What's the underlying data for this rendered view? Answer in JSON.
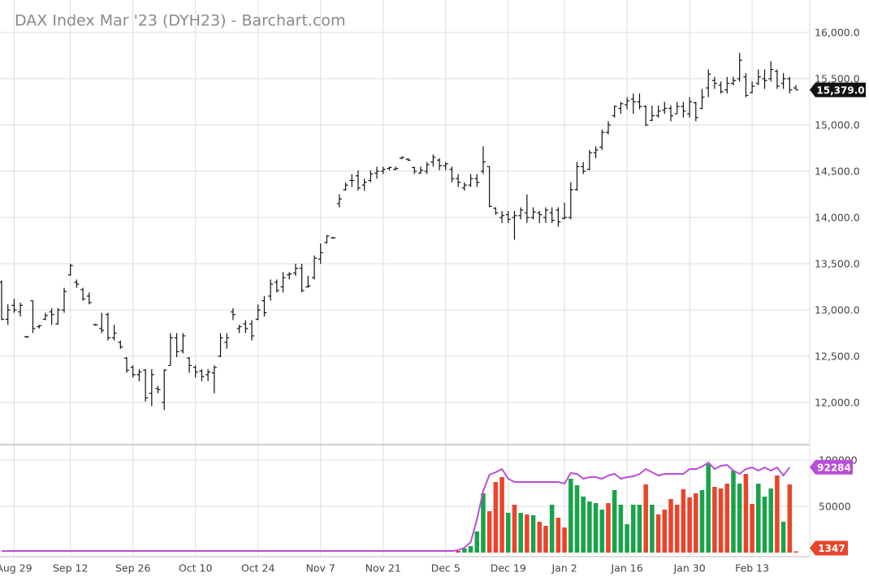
{
  "chart_data": {
    "type": "ohlc",
    "title": "DAX Index Mar '23 (DYH23) - Barchart.com",
    "categories": [
      null,
      null,
      "Aug 29",
      null,
      null,
      null,
      null,
      null,
      null,
      null,
      null,
      "Sep 12",
      null,
      null,
      null,
      null,
      null,
      null,
      null,
      null,
      null,
      "Sep 26",
      null,
      null,
      null,
      null,
      null,
      null,
      null,
      null,
      null,
      "Oct 10",
      null,
      null,
      null,
      null,
      null,
      null,
      null,
      null,
      null,
      "Oct 24",
      null,
      null,
      null,
      null,
      null,
      null,
      null,
      null,
      null,
      "Nov 7",
      null,
      null,
      null,
      null,
      null,
      null,
      null,
      null,
      null,
      "Nov 21",
      null,
      null,
      null,
      null,
      null,
      null,
      null,
      null,
      null,
      "Dec 5",
      null,
      null,
      null,
      null,
      null,
      null,
      null,
      null,
      null,
      "Dec 19",
      null,
      null,
      null,
      null,
      null,
      null,
      null,
      null,
      "Jan 2",
      null,
      null,
      null,
      null,
      null,
      null,
      null,
      null,
      null,
      "Jan 16",
      null,
      null,
      null,
      null,
      null,
      null,
      null,
      null,
      null,
      "Jan 30",
      null,
      null,
      null,
      null,
      null,
      null,
      null,
      null,
      null,
      "Feb 13",
      null,
      null,
      null,
      null,
      null,
      null,
      null
    ],
    "open": [
      13300,
      12900,
      13050,
      12980,
      12710,
      13100,
      12820,
      12900,
      12980,
      12850,
      13000,
      13380,
      13300,
      13220,
      13150,
      12840,
      12800,
      12950,
      12700,
      12650,
      12480,
      12380,
      12300,
      12350,
      12100,
      12150,
      12000,
      12400,
      12700,
      12560,
      12480,
      12380,
      12340,
      12300,
      12320,
      12500,
      12650,
      12980,
      12800,
      12850,
      12850,
      12900,
      13100,
      13150,
      13300,
      13250,
      13380,
      13400,
      13450,
      13250,
      13350,
      13550,
      13730,
      13780,
      14150,
      14300,
      14400,
      14450,
      14350,
      14400,
      14480,
      14500,
      14530,
      14520,
      14640,
      14630,
      14540,
      14480,
      14500,
      14600,
      14620,
      14560,
      14520,
      14420,
      14320,
      14350,
      14420,
      14500,
      14550,
      14100,
      14000,
      14030,
      14000,
      14020,
      14050,
      14000,
      14050,
      14000,
      14050,
      14080,
      13990,
      14000,
      14300,
      14550,
      14520,
      14700,
      14760,
      14920,
      15100,
      15180,
      15220,
      15280,
      15250,
      15200,
      15050,
      15100,
      15160,
      15180,
      15120,
      15200,
      15120,
      15240,
      15180,
      15400,
      15480,
      15430,
      15380,
      15450,
      15500,
      15520,
      15350,
      15450,
      15500,
      15500,
      15580,
      15450,
      15500,
      15400
    ],
    "high": [
      13320,
      13060,
      13120,
      13080,
      12720,
      13100,
      12840,
      12970,
      13020,
      13020,
      13240,
      13500,
      13330,
      13240,
      13190,
      12850,
      12970,
      12970,
      12840,
      12670,
      12490,
      12400,
      12360,
      12360,
      12360,
      12180,
      12360,
      12750,
      12750,
      12750,
      12490,
      12400,
      12360,
      12360,
      12400,
      12750,
      12750,
      13020,
      12840,
      12890,
      12890,
      13060,
      13150,
      13330,
      13330,
      13410,
      13410,
      13500,
      13500,
      13370,
      13590,
      13720,
      13810,
      13790,
      14250,
      14380,
      14470,
      14510,
      14420,
      14510,
      14550,
      14550,
      14550,
      14550,
      14660,
      14640,
      14550,
      14550,
      14600,
      14680,
      14640,
      14600,
      14550,
      14470,
      14380,
      14470,
      14470,
      14770,
      14550,
      14110,
      14070,
      14070,
      14070,
      14110,
      14250,
      14110,
      14070,
      14110,
      14110,
      14110,
      14160,
      14380,
      14600,
      14600,
      14730,
      14770,
      14950,
      15040,
      15210,
      15250,
      15300,
      15340,
      15340,
      15210,
      15210,
      15210,
      15250,
      15210,
      15250,
      15250,
      15300,
      15250,
      15390,
      15600,
      15520,
      15470,
      15520,
      15520,
      15780,
      15560,
      15470,
      15600,
      15600,
      15690,
      15600,
      15560,
      15520,
      15430
    ],
    "low": [
      12890,
      12840,
      12970,
      12930,
      12700,
      12750,
      12800,
      12890,
      12840,
      12840,
      12970,
      13370,
      13240,
      13100,
      13060,
      12830,
      12750,
      12670,
      12670,
      12580,
      12320,
      12270,
      12230,
      12010,
      11960,
      12100,
      11920,
      12400,
      12490,
      12530,
      12320,
      12270,
      12230,
      12230,
      12100,
      12490,
      12580,
      12890,
      12750,
      12750,
      12670,
      12890,
      12930,
      13100,
      13190,
      13190,
      13330,
      13370,
      13190,
      13240,
      13330,
      13500,
      13720,
      13770,
      14110,
      14290,
      14330,
      14290,
      14290,
      14380,
      14420,
      14470,
      14510,
      14510,
      14630,
      14610,
      14470,
      14470,
      14470,
      14550,
      14510,
      14510,
      14380,
      14330,
      14290,
      14330,
      14330,
      14470,
      14110,
      14030,
      13940,
      13940,
      13760,
      13980,
      13940,
      13980,
      13940,
      13940,
      13940,
      13900,
      13980,
      13980,
      14290,
      14470,
      14510,
      14640,
      14730,
      14900,
      15080,
      15120,
      15170,
      15120,
      15170,
      14990,
      15040,
      15080,
      15120,
      15040,
      15120,
      15080,
      15080,
      15040,
      15170,
      15300,
      15390,
      15340,
      15340,
      15430,
      15470,
      15300,
      15340,
      15430,
      15390,
      15470,
      15390,
      15390,
      15340,
      15380
    ],
    "close": [
      12900,
      13000,
      13000,
      13050,
      12710,
      12800,
      12830,
      12940,
      12950,
      13000,
      13200,
      13480,
      13280,
      13120,
      13080,
      12840,
      12780,
      12700,
      12750,
      12600,
      12350,
      12300,
      12330,
      12050,
      12300,
      12140,
      12350,
      12700,
      12550,
      12720,
      12400,
      12330,
      12280,
      12330,
      12380,
      12700,
      12700,
      12950,
      12820,
      12800,
      12720,
      13000,
      12970,
      13280,
      13210,
      13350,
      13390,
      13450,
      13210,
      13260,
      13560,
      13620,
      13800,
      13780,
      14200,
      14350,
      14400,
      14320,
      14380,
      14470,
      14500,
      14520,
      14540,
      14530,
      14650,
      14620,
      14500,
      14510,
      14570,
      14650,
      14560,
      14580,
      14420,
      14380,
      14350,
      14420,
      14380,
      14600,
      14120,
      14050,
      14020,
      13980,
      14020,
      14080,
      14000,
      14060,
      14030,
      14080,
      13970,
      13950,
      14000,
      14300,
      14550,
      14500,
      14700,
      14730,
      14920,
      15000,
      15200,
      15230,
      15260,
      15250,
      15200,
      15000,
      15100,
      15150,
      15180,
      15100,
      15200,
      15150,
      15250,
      15080,
      15300,
      15550,
      15450,
      15360,
      15450,
      15480,
      15700,
      15320,
      15420,
      15520,
      15480,
      15600,
      15420,
      15500,
      15380,
      15379
    ],
    "last_close_label": "15,379.0",
    "color": "#111111",
    "ylim": [
      11544,
      16351
    ],
    "yticks": [
      {
        "value": 12000,
        "label": "12,000.0"
      },
      {
        "value": 12500,
        "label": "12,500.0"
      },
      {
        "value": 13000,
        "label": "13,000.0"
      },
      {
        "value": 13500,
        "label": "13,500.0"
      },
      {
        "value": 14000,
        "label": "14,000.0"
      },
      {
        "value": 14500,
        "label": "14,500.0"
      },
      {
        "value": 15000,
        "label": "15,000.0"
      },
      {
        "value": 15500,
        "label": "15,500.0"
      },
      {
        "value": 16000,
        "label": "16,000.0"
      }
    ],
    "grid": true,
    "volume": {
      "values": [
        0,
        0,
        0,
        0,
        0,
        0,
        0,
        0,
        0,
        0,
        0,
        0,
        0,
        0,
        0,
        0,
        0,
        0,
        0,
        0,
        0,
        0,
        0,
        0,
        0,
        0,
        0,
        0,
        0,
        0,
        0,
        0,
        0,
        0,
        0,
        0,
        0,
        0,
        0,
        0,
        0,
        0,
        0,
        0,
        0,
        0,
        0,
        0,
        0,
        0,
        0,
        0,
        0,
        0,
        0,
        0,
        0,
        0,
        0,
        0,
        0,
        0,
        0,
        0,
        0,
        0,
        0,
        0,
        0,
        0,
        0,
        0,
        0,
        1750,
        4390,
        7020,
        22810,
        64040,
        44740,
        76320,
        81580,
        42980,
        51750,
        42980,
        41230,
        40350,
        33330,
        28950,
        51750,
        37720,
        27190,
        79830,
        72810,
        60530,
        55260,
        53510,
        46490,
        53510,
        67540,
        51750,
        30700,
        51750,
        51750,
        73680,
        51750,
        41230,
        46490,
        57900,
        51750,
        68420,
        59650,
        64040,
        67540,
        95610,
        71050,
        69300,
        74560,
        88600,
        74560,
        85090,
        52630,
        74560,
        60530,
        69300,
        83330,
        33330,
        73680,
        1347
      ],
      "colors": [
        null,
        null,
        null,
        null,
        null,
        null,
        null,
        null,
        null,
        null,
        null,
        null,
        null,
        null,
        null,
        null,
        null,
        null,
        null,
        null,
        null,
        null,
        null,
        null,
        null,
        null,
        null,
        null,
        null,
        null,
        null,
        null,
        null,
        null,
        null,
        null,
        null,
        null,
        null,
        null,
        null,
        null,
        null,
        null,
        null,
        null,
        null,
        null,
        null,
        null,
        null,
        null,
        null,
        null,
        null,
        null,
        null,
        null,
        null,
        null,
        null,
        null,
        null,
        null,
        null,
        null,
        null,
        null,
        null,
        null,
        null,
        null,
        null,
        "#e8452c",
        "#1aa34a",
        "#1aa34a",
        "#1aa34a",
        "#1aa34a",
        "#e8452c",
        "#e8452c",
        "#e8452c",
        "#1aa34a",
        "#e8452c",
        "#1aa34a",
        "#e8452c",
        "#1aa34a",
        "#e8452c",
        "#e8452c",
        "#1aa34a",
        "#e8452c",
        "#e8452c",
        "#1aa34a",
        "#1aa34a",
        "#1aa34a",
        "#1aa34a",
        "#1aa34a",
        "#1aa34a",
        "#e8452c",
        "#1aa34a",
        "#1aa34a",
        "#1aa34a",
        "#1aa34a",
        "#1aa34a",
        "#e8452c",
        "#1aa34a",
        "#e8452c",
        "#e8452c",
        "#e8452c",
        "#e8452c",
        "#e8452c",
        "#e8452c",
        "#e8452c",
        "#1aa34a",
        "#1aa34a",
        "#e8452c",
        "#e8452c",
        "#e8452c",
        "#1aa34a",
        "#1aa34a",
        "#e8452c",
        "#e8452c",
        "#1aa34a",
        "#1aa34a",
        "#1aa34a",
        "#e8452c",
        "#1aa34a",
        "#e8452c",
        "#e8452c"
      ],
      "badge_color": "#e8452c",
      "open_interest": {
        "color": "#b94fd6",
        "values": [
          1750,
          1750,
          1750,
          1750,
          1750,
          1750,
          1750,
          1750,
          1750,
          1750,
          1750,
          1750,
          1750,
          1750,
          1750,
          1750,
          1750,
          1750,
          1750,
          1750,
          1750,
          1750,
          1750,
          1750,
          1750,
          1750,
          1750,
          1750,
          1750,
          1750,
          1750,
          1750,
          1750,
          1750,
          1750,
          1750,
          1750,
          1750,
          1750,
          1750,
          1750,
          1750,
          1750,
          1750,
          1750,
          1750,
          1750,
          1750,
          1750,
          1750,
          1750,
          1750,
          1750,
          1750,
          1750,
          1750,
          1750,
          1750,
          1750,
          1750,
          1750,
          1750,
          1750,
          1750,
          1750,
          1750,
          1750,
          1750,
          1750,
          1750,
          1750,
          1750,
          1750,
          2630,
          5260,
          11400,
          35970,
          66670,
          84210,
          86840,
          90350,
          79830,
          76320,
          76320,
          76320,
          76320,
          76320,
          76320,
          76320,
          76320,
          74560,
          85970,
          85090,
          79830,
          81580,
          81580,
          79830,
          83330,
          85090,
          79830,
          81580,
          82460,
          85090,
          90350,
          86840,
          83330,
          85090,
          85090,
          85090,
          85090,
          90350,
          90350,
          92980,
          97370,
          90350,
          93860,
          94740,
          88600,
          85090,
          90350,
          92110,
          88600,
          92110,
          88600,
          92110,
          83330,
          92284,
          null
        ]
      },
      "ylim": [
        0,
        116670
      ],
      "yticks": [
        50000,
        100000
      ]
    }
  }
}
